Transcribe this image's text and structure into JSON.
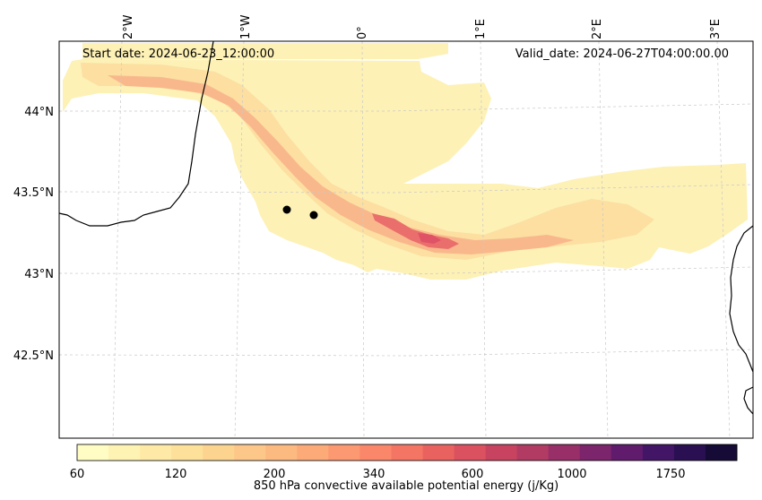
{
  "map": {
    "start_date": "Start date: 2024-06-23_12:00:00",
    "valid_date": "Valid_date: 2024-06-27T04:00:00.00",
    "lon_labels": [
      "2°W",
      "1°W",
      "0°",
      "1°E",
      "2°E",
      "3°E"
    ],
    "lat_labels": [
      "44°N",
      "43.5°N",
      "43°N",
      "42.5°N"
    ],
    "points": [
      "point-1",
      "point-2"
    ]
  },
  "colorbar": {
    "label": "850 hPa convective available potential energy (j/Kg)",
    "tick_labels": [
      "60",
      "120",
      "200",
      "340",
      "600",
      "1000",
      "1750"
    ],
    "colors": [
      "#fffcc4",
      "#fef3b3",
      "#feeaa6",
      "#fde09a",
      "#fcd490",
      "#fcc788",
      "#fcb980",
      "#fdaa79",
      "#fc9872",
      "#fb876b",
      "#f47564",
      "#ea625f",
      "#db515f",
      "#c8435f",
      "#b13b63",
      "#982f68",
      "#7c246c",
      "#601b6d",
      "#431567",
      "#2a1052",
      "#150b36"
    ]
  },
  "field": {
    "colors": {
      "low": "#fcefb4",
      "mid": "#fcd9a0",
      "high": "#f9a985",
      "peak": "#eb6f6d",
      "coast": "#000000",
      "point": "#000000"
    }
  }
}
